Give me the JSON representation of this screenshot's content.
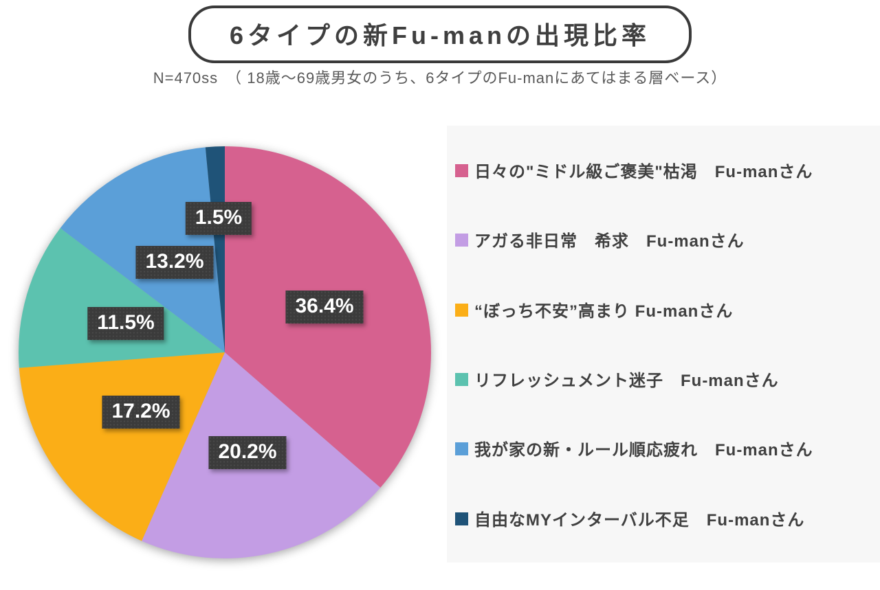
{
  "title": {
    "text": "6タイプの新Fu-manの出現比率"
  },
  "subtitle": {
    "text": "N=470ss　（ 18歳～69歳男女のうち、6タイプのFu-manにあてはまる層ベース）"
  },
  "chart_data": {
    "type": "pie",
    "title": "6タイプの新Fu-manの出現比率",
    "sample_note": "N=470ss（18歳～69歳男女のうち、6タイプのFu-manにあてはまる層ベース）",
    "unit": "%",
    "start_angle_deg": 0,
    "direction": "clockwise",
    "legend_position": "right",
    "slices": [
      {
        "label": "日々の\"ミドル級ご褒美\"枯渇　Fu-manさん",
        "value": 36.4,
        "data_label": "36.4%",
        "color": "#d6618f"
      },
      {
        "label": "アガる非日常　希求　Fu-manさん",
        "value": 20.2,
        "data_label": "20.2%",
        "color": "#c39de4"
      },
      {
        "label": "“ぼっち不安”高まり Fu-manさん",
        "value": 17.2,
        "data_label": "17.2%",
        "color": "#fbae17"
      },
      {
        "label": "リフレッシュメント迷子　Fu-manさん",
        "value": 11.5,
        "data_label": "11.5%",
        "color": "#5cc2af"
      },
      {
        "label": "我が家の新・ルール順応疲れ　Fu-manさん",
        "value": 13.2,
        "data_label": "13.2%",
        "color": "#5b9fd8"
      },
      {
        "label": "自由なMYインターバル不足　Fu-manさん",
        "value": 1.5,
        "data_label": "1.5%",
        "color": "#1f5378"
      }
    ],
    "label_radius_frac": [
      0.53,
      0.5,
      0.5,
      0.5,
      0.5,
      0.65
    ],
    "colors": {
      "label_bg": "#3b3b3b",
      "label_text": "#ffffff",
      "legend_bg": "#f7f7f7",
      "legend_text": "#404040",
      "title_border": "#3a3a3a"
    }
  }
}
